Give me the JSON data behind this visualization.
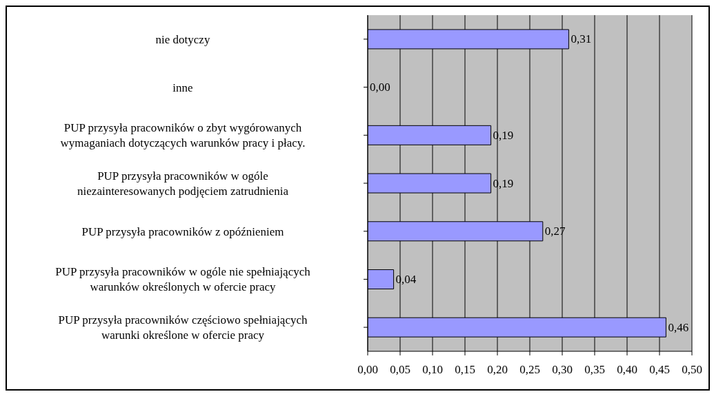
{
  "chart_data": {
    "type": "bar",
    "orientation": "horizontal",
    "categories": [
      "nie dotyczy",
      "inne",
      "PUP przysyła pracowników o zbyt wygórowanych wymaganiach dotyczących warunków pracy i płacy.",
      "PUP przysyła pracowników w ogóle niezainteresowanych podjęciem zatrudnienia",
      "PUP przysyła pracowników z opóźnieniem",
      "PUP przysyła pracowników w ogóle nie spełniających warunków określonych w ofercie pracy",
      "PUP przysyła pracowników częściowo spełniających warunki określone w ofercie pracy"
    ],
    "values": [
      0.31,
      0.0,
      0.19,
      0.19,
      0.27,
      0.04,
      0.46
    ],
    "value_labels": [
      "0,31",
      "0,00",
      "0,19",
      "0,19",
      "0,27",
      "0,04",
      "0,46"
    ],
    "color": "#9999ff",
    "xlim": [
      0,
      0.5
    ],
    "xticks": [
      {
        "value": 0,
        "label": "0,00"
      },
      {
        "value": 0.05,
        "label": "0,05"
      },
      {
        "value": 0.1,
        "label": "0,10"
      },
      {
        "value": 0.15,
        "label": "0,15"
      },
      {
        "value": 0.2,
        "label": "0,20"
      },
      {
        "value": 0.25,
        "label": "0,25"
      },
      {
        "value": 0.3,
        "label": "0,30"
      },
      {
        "value": 0.35,
        "label": "0,35"
      },
      {
        "value": 0.4,
        "label": "0,40"
      },
      {
        "value": 0.45,
        "label": "0,45"
      },
      {
        "value": 0.5,
        "label": "0,50"
      }
    ],
    "grid": "x"
  }
}
